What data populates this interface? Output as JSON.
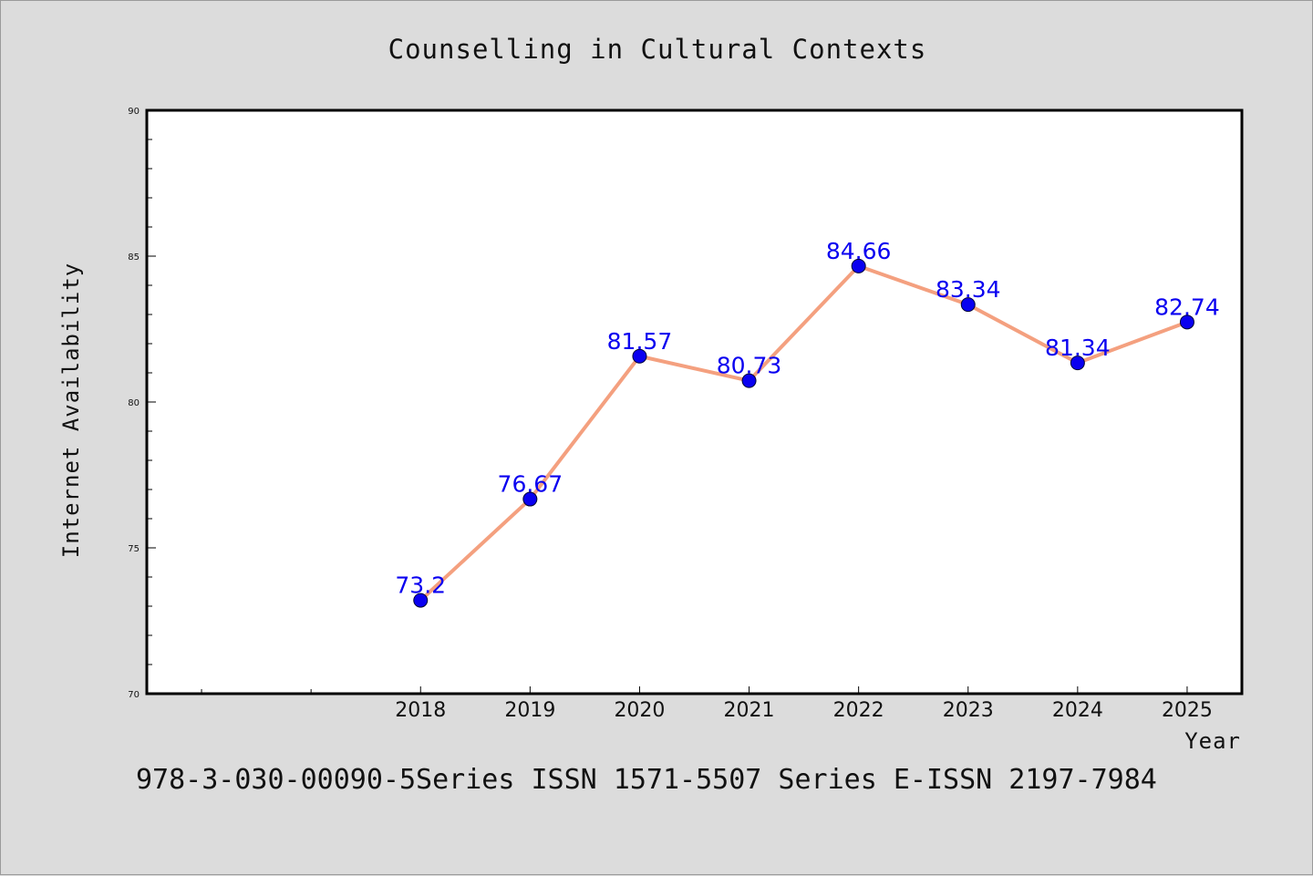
{
  "chart_data": {
    "type": "line",
    "title": "Counselling in Cultural Contexts",
    "xlabel": "Year",
    "ylabel": "Internet Availability",
    "footer": "978-3-030-00090-5Series ISSN 1571-5507 Series E-ISSN 2197-7984",
    "categories": [
      "2018",
      "2019",
      "2020",
      "2021",
      "2022",
      "2023",
      "2024",
      "2025"
    ],
    "series": [
      {
        "values": [
          73.2,
          76.67,
          81.57,
          80.73,
          84.66,
          83.34,
          81.34,
          82.74
        ],
        "labels": [
          "73.2",
          "76.67",
          "81.57",
          "80.73",
          "84.66",
          "83.34",
          "81.34",
          "82.74"
        ]
      }
    ],
    "ylim": [
      70,
      90
    ],
    "yticks": [
      70,
      75,
      80,
      85,
      90
    ],
    "x_range": [
      2015.5,
      2025.5
    ],
    "grid": false,
    "colors": {
      "line": "#f4a07f",
      "marker": "#0a00f0",
      "data_label": "#0a00f0",
      "plot_bg": "#ffffff",
      "page_bg": "#dcdcdc"
    }
  }
}
